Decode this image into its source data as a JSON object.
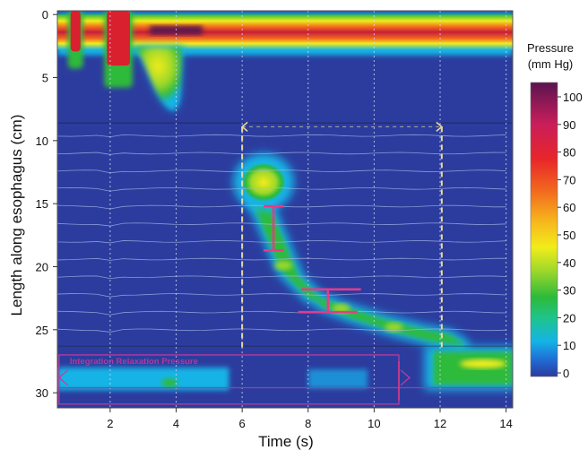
{
  "chart_data": {
    "type": "heatmap",
    "xlabel": "Time (s)",
    "ylabel": "Length along esophagus (cm)",
    "x_ticks": [
      2,
      4,
      6,
      8,
      10,
      12,
      14
    ],
    "y_ticks": [
      0,
      5,
      10,
      15,
      20,
      25,
      30
    ],
    "xlim": [
      0.4,
      14.2
    ],
    "ylim": [
      -0.3,
      31.2
    ],
    "y_inverted": true,
    "colorbar": {
      "title_line1": "Pressure",
      "title_line2": "(mm Hg)",
      "ticks": [
        0,
        10,
        20,
        30,
        40,
        50,
        60,
        70,
        80,
        90,
        100
      ],
      "colors": [
        "#2a3a9e",
        "#1f6fd6",
        "#14b4e6",
        "#1fc48a",
        "#2dba3a",
        "#9ed82a",
        "#f2ec1a",
        "#f7b51c",
        "#f26a1e",
        "#e8262a",
        "#c81e5a",
        "#5a1450"
      ]
    },
    "annotations": {
      "box_label": "Integration Relaxation Pressure"
    },
    "regions": [
      {
        "name": "upper sphincter band",
        "t": [
          0.4,
          14.2
        ],
        "cm": [
          0,
          2.8
        ],
        "pressure": 70
      },
      {
        "name": "swallow stroke 1",
        "t": [
          0.8,
          1.1
        ],
        "cm": [
          -0.3,
          4
        ],
        "pressure": 70
      },
      {
        "name": "swallow stroke 2",
        "t": [
          1.9,
          2.6
        ],
        "cm": [
          -0.3,
          5.5
        ],
        "pressure": 80
      },
      {
        "name": "pharyngeal tail",
        "t": [
          2.7,
          4.2
        ],
        "cm": [
          2.5,
          7.5
        ],
        "pressure": 45
      },
      {
        "name": "proximal contraction",
        "t": [
          5.8,
          7.5
        ],
        "cm": [
          11.5,
          14.5
        ],
        "pressure": 45
      },
      {
        "name": "peristaltic wave",
        "t": [
          6.4,
          12.4
        ],
        "cm": [
          14.5,
          25.7
        ],
        "pressure": 25
      },
      {
        "name": "lower sphincter band",
        "t": [
          11.8,
          14.2
        ],
        "cm": [
          26.5,
          29.5
        ],
        "pressure": 35
      },
      {
        "name": "lower sphincter left",
        "t": [
          0.4,
          5.5
        ],
        "cm": [
          28.0,
          29.8
        ],
        "pressure": 15
      }
    ]
  }
}
